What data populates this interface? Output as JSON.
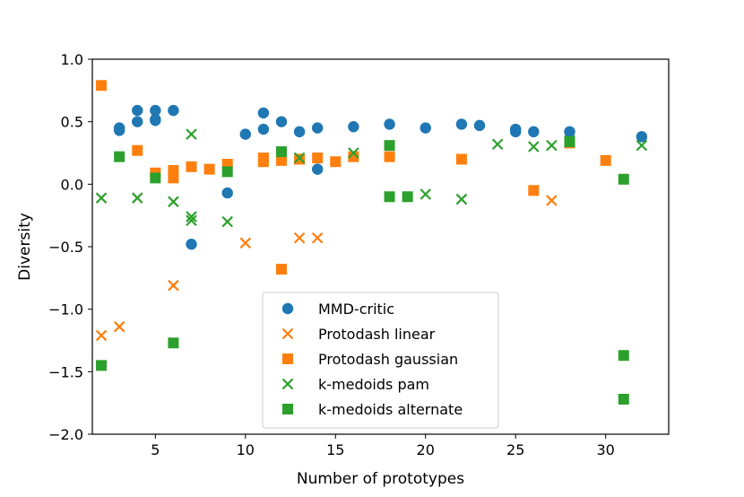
{
  "chart_data": {
    "type": "scatter",
    "title": "",
    "xlabel": "Number of prototypes",
    "ylabel": "Diversity",
    "xlim": [
      1.5,
      33.5
    ],
    "ylim": [
      -2.0,
      1.0
    ],
    "xticks": [
      5,
      10,
      15,
      20,
      25,
      30
    ],
    "yticks": [
      -2.0,
      -1.5,
      -1.0,
      -0.5,
      0.0,
      0.5,
      1.0
    ],
    "xtick_labels": [
      "5",
      "10",
      "15",
      "20",
      "25",
      "30"
    ],
    "ytick_labels": [
      "−2.0",
      "−1.5",
      "−1.0",
      "−0.5",
      "0.0",
      "0.5",
      "1.0"
    ],
    "grid": false,
    "legend_position": "lower-center",
    "series": [
      {
        "name": "MMD-critic",
        "marker": "circle",
        "color": "#1f77b4",
        "points": [
          [
            3,
            0.43
          ],
          [
            3,
            0.45
          ],
          [
            4,
            0.5
          ],
          [
            4,
            0.59
          ],
          [
            5,
            0.51
          ],
          [
            5,
            0.52
          ],
          [
            5,
            0.59
          ],
          [
            6,
            0.59
          ],
          [
            7,
            -0.48
          ],
          [
            9,
            -0.07
          ],
          [
            10,
            0.4
          ],
          [
            11,
            0.44
          ],
          [
            11,
            0.57
          ],
          [
            12,
            0.5
          ],
          [
            13,
            0.42
          ],
          [
            14,
            0.12
          ],
          [
            14,
            0.45
          ],
          [
            16,
            0.46
          ],
          [
            18,
            0.48
          ],
          [
            20,
            0.45
          ],
          [
            22,
            0.48
          ],
          [
            23,
            0.47
          ],
          [
            25,
            0.42
          ],
          [
            25,
            0.44
          ],
          [
            26,
            0.42
          ],
          [
            28,
            0.42
          ],
          [
            32,
            0.38
          ]
        ]
      },
      {
        "name": "Protodash linear",
        "marker": "x",
        "color": "#ff7f0e",
        "points": [
          [
            2,
            -1.21
          ],
          [
            3,
            -1.14
          ],
          [
            6,
            -0.81
          ],
          [
            10,
            -0.47
          ],
          [
            13,
            -0.43
          ],
          [
            14,
            -0.43
          ],
          [
            27,
            -0.13
          ]
        ]
      },
      {
        "name": "Protodash gaussian",
        "marker": "square",
        "color": "#ff7f0e",
        "points": [
          [
            2,
            0.79
          ],
          [
            4,
            0.27
          ],
          [
            5,
            0.09
          ],
          [
            6,
            0.05
          ],
          [
            6,
            0.11
          ],
          [
            7,
            0.14
          ],
          [
            8,
            0.12
          ],
          [
            9,
            0.16
          ],
          [
            11,
            0.18
          ],
          [
            11,
            0.21
          ],
          [
            12,
            -0.68
          ],
          [
            12,
            0.19
          ],
          [
            13,
            0.2
          ],
          [
            14,
            0.21
          ],
          [
            15,
            0.18
          ],
          [
            16,
            0.22
          ],
          [
            18,
            0.22
          ],
          [
            22,
            0.2
          ],
          [
            26,
            -0.05
          ],
          [
            28,
            0.33
          ],
          [
            30,
            0.19
          ]
        ]
      },
      {
        "name": "k-medoids pam",
        "marker": "x",
        "color": "#2ca02c",
        "points": [
          [
            2,
            -0.11
          ],
          [
            4,
            -0.11
          ],
          [
            6,
            -0.14
          ],
          [
            7,
            0.4
          ],
          [
            7,
            -0.26
          ],
          [
            7,
            -0.29
          ],
          [
            9,
            -0.3
          ],
          [
            13,
            0.21
          ],
          [
            16,
            0.25
          ],
          [
            20,
            -0.08
          ],
          [
            22,
            -0.12
          ],
          [
            24,
            0.32
          ],
          [
            26,
            0.3
          ],
          [
            27,
            0.31
          ],
          [
            28,
            0.35
          ],
          [
            32,
            0.31
          ]
        ]
      },
      {
        "name": "k-medoids alternate",
        "marker": "square",
        "color": "#2ca02c",
        "points": [
          [
            2,
            -1.45
          ],
          [
            3,
            0.22
          ],
          [
            5,
            0.05
          ],
          [
            6,
            -1.27
          ],
          [
            9,
            0.1
          ],
          [
            12,
            0.26
          ],
          [
            18,
            0.31
          ],
          [
            18,
            -0.1
          ],
          [
            19,
            -0.1
          ],
          [
            28,
            0.34
          ],
          [
            31,
            0.04
          ],
          [
            31,
            -1.37
          ],
          [
            31,
            -1.72
          ]
        ]
      }
    ]
  }
}
